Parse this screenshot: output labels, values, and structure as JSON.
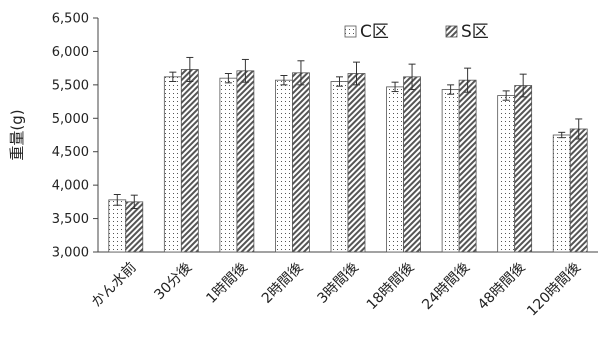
{
  "chart_data": {
    "type": "bar",
    "title": "",
    "xlabel": "",
    "ylabel": "重量(g)",
    "ylim": [
      3000,
      6500
    ],
    "yticks": [
      3000,
      3500,
      4000,
      4500,
      5000,
      5500,
      6000,
      6500
    ],
    "ytick_labels": [
      "3,000",
      "3,500",
      "4,000",
      "4,500",
      "5,000",
      "5,500",
      "6,000",
      "6,500"
    ],
    "categories": [
      "かん水前",
      "30分後",
      "1時間後",
      "2時間後",
      "3時間後",
      "18時間後",
      "24時間後",
      "48時間後",
      "120時間後"
    ],
    "series": [
      {
        "name": "C区",
        "pattern": "dots",
        "values": [
          3780,
          5620,
          5600,
          5570,
          5550,
          5470,
          5430,
          5340,
          4750
        ],
        "errors": [
          80,
          70,
          70,
          70,
          70,
          70,
          70,
          70,
          40
        ]
      },
      {
        "name": "S区",
        "pattern": "diagonal",
        "values": [
          3750,
          5730,
          5710,
          5680,
          5670,
          5620,
          5570,
          5490,
          4840
        ],
        "errors": [
          100,
          180,
          170,
          180,
          170,
          190,
          180,
          170,
          150
        ]
      }
    ],
    "legend_position": "top-right",
    "grid": false
  }
}
